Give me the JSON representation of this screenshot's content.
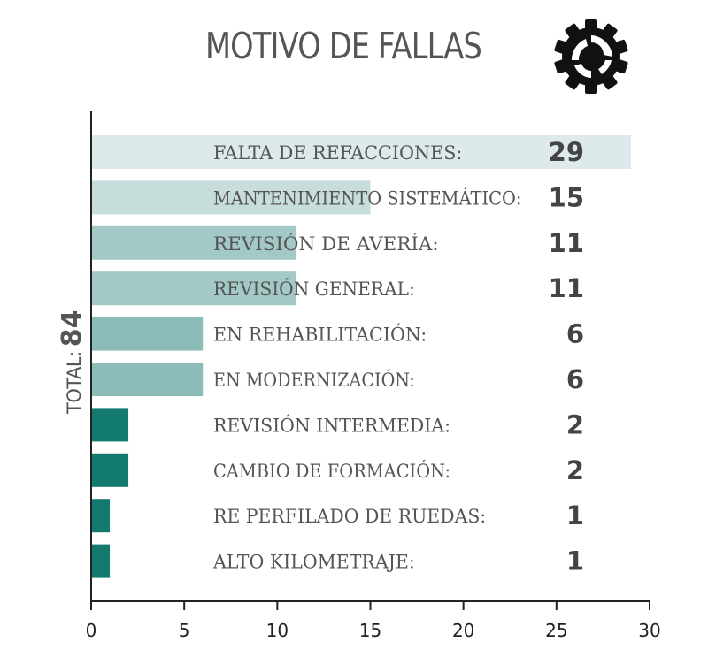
{
  "chart_data": {
    "type": "bar",
    "orientation": "horizontal",
    "title": "MOTIVO DE FALLAS",
    "total_label": "TOTAL:",
    "total_value": "84",
    "categories": [
      "FALTA DE REFACCIONES:",
      "MANTENIMIENTO SISTEMÁTICO:",
      "REVISIÓN DE AVERÍA:",
      "REVISIÓN GENERAL:",
      "EN REHABILITACIÓN:",
      "EN MODERNIZACIÓN:",
      "REVISIÓN INTERMEDIA:",
      "CAMBIO DE FORMACIÓN:",
      "RE PERFILADO DE RUEDAS:",
      "ALTO KILOMETRAJE:"
    ],
    "values": [
      29,
      15,
      11,
      11,
      6,
      6,
      2,
      2,
      1,
      1
    ],
    "value_labels": [
      "29",
      "15",
      "11",
      "11",
      "6",
      "6",
      "2",
      "2",
      "1",
      "1"
    ],
    "xlim": [
      0,
      30
    ],
    "xticks": [
      0,
      5,
      10,
      15,
      20,
      25,
      30
    ],
    "xtick_labels": [
      "0",
      "5",
      "10",
      "15",
      "20",
      "25",
      "30"
    ],
    "grid": false,
    "colors": [
      "#dde9ea",
      "#c6dddb",
      "#a3c9c6",
      "#a3c9c6",
      "#8bbcb7",
      "#8bbcb7",
      "#137a70",
      "#137a70",
      "#137a70",
      "#137a70"
    ],
    "axis_color": "#222222"
  },
  "icons": {
    "logo": "gear-icon"
  }
}
